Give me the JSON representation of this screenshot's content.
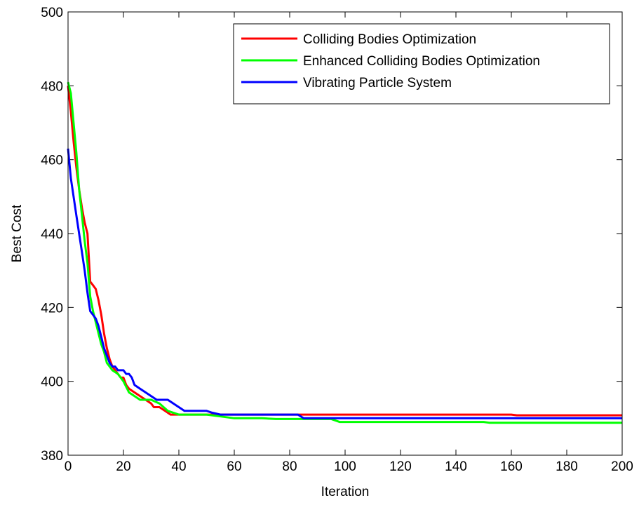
{
  "chart_data": {
    "type": "line",
    "xlabel": "Iteration",
    "ylabel": "Best Cost",
    "xlim": [
      0,
      200
    ],
    "ylim": [
      380,
      500
    ],
    "xticks": [
      0,
      20,
      40,
      60,
      80,
      100,
      120,
      140,
      160,
      180,
      200
    ],
    "yticks": [
      380,
      400,
      420,
      440,
      460,
      480,
      500
    ],
    "grid": false,
    "legend_position": "top-right",
    "series": [
      {
        "name": "Colliding Bodies Optimization",
        "color": "#ff0000",
        "points": [
          [
            0,
            480
          ],
          [
            1,
            473
          ],
          [
            2,
            465
          ],
          [
            3,
            458
          ],
          [
            4,
            452
          ],
          [
            5,
            447
          ],
          [
            6,
            443
          ],
          [
            7,
            440
          ],
          [
            8,
            427
          ],
          [
            9,
            426
          ],
          [
            10,
            425
          ],
          [
            11,
            422
          ],
          [
            12,
            418
          ],
          [
            13,
            413
          ],
          [
            14,
            409
          ],
          [
            15,
            406
          ],
          [
            16,
            404
          ],
          [
            17,
            403
          ],
          [
            18,
            402
          ],
          [
            19,
            401
          ],
          [
            20,
            401
          ],
          [
            21,
            399
          ],
          [
            22,
            398
          ],
          [
            24,
            397
          ],
          [
            26,
            396
          ],
          [
            28,
            395
          ],
          [
            30,
            394
          ],
          [
            31,
            393
          ],
          [
            33,
            393
          ],
          [
            35,
            392
          ],
          [
            37,
            391
          ],
          [
            40,
            391
          ],
          [
            50,
            391
          ],
          [
            60,
            391
          ],
          [
            80,
            391
          ],
          [
            100,
            391
          ],
          [
            120,
            391
          ],
          [
            140,
            391
          ],
          [
            160,
            391
          ],
          [
            162,
            390.8
          ],
          [
            180,
            390.8
          ],
          [
            200,
            390.8
          ]
        ]
      },
      {
        "name": "Enhanced Colliding Bodies Optimization",
        "color": "#00ff00",
        "points": [
          [
            0,
            481
          ],
          [
            1,
            478
          ],
          [
            2,
            470
          ],
          [
            3,
            462
          ],
          [
            4,
            452
          ],
          [
            5,
            445
          ],
          [
            6,
            438
          ],
          [
            7,
            432
          ],
          [
            8,
            423
          ],
          [
            9,
            419
          ],
          [
            10,
            416
          ],
          [
            11,
            413
          ],
          [
            12,
            410
          ],
          [
            13,
            408
          ],
          [
            14,
            405
          ],
          [
            15,
            404
          ],
          [
            16,
            403
          ],
          [
            18,
            402
          ],
          [
            19,
            401
          ],
          [
            20,
            400
          ],
          [
            22,
            397
          ],
          [
            24,
            396
          ],
          [
            26,
            395
          ],
          [
            30,
            395
          ],
          [
            33,
            394
          ],
          [
            36,
            392
          ],
          [
            40,
            391
          ],
          [
            50,
            391
          ],
          [
            55,
            390.5
          ],
          [
            60,
            390
          ],
          [
            70,
            390
          ],
          [
            75,
            389.8
          ],
          [
            95,
            389.8
          ],
          [
            98,
            389
          ],
          [
            120,
            389
          ],
          [
            150,
            389
          ],
          [
            152,
            388.8
          ],
          [
            170,
            388.8
          ],
          [
            200,
            388.8
          ]
        ]
      },
      {
        "name": "Vibrating Particle System",
        "color": "#0000ff",
        "points": [
          [
            0,
            463
          ],
          [
            1,
            455
          ],
          [
            2,
            450
          ],
          [
            3,
            445
          ],
          [
            4,
            440
          ],
          [
            5,
            435
          ],
          [
            6,
            430
          ],
          [
            7,
            424
          ],
          [
            8,
            419
          ],
          [
            9,
            418
          ],
          [
            10,
            417
          ],
          [
            11,
            415
          ],
          [
            12,
            412
          ],
          [
            13,
            409
          ],
          [
            14,
            407
          ],
          [
            15,
            405
          ],
          [
            16,
            404
          ],
          [
            17,
            404
          ],
          [
            18,
            403
          ],
          [
            20,
            403
          ],
          [
            21,
            402
          ],
          [
            22,
            402
          ],
          [
            23,
            401
          ],
          [
            24,
            399
          ],
          [
            26,
            398
          ],
          [
            28,
            397
          ],
          [
            30,
            396
          ],
          [
            32,
            395
          ],
          [
            36,
            395
          ],
          [
            38,
            394
          ],
          [
            40,
            393
          ],
          [
            42,
            392
          ],
          [
            50,
            392
          ],
          [
            52,
            391.5
          ],
          [
            55,
            391
          ],
          [
            60,
            391
          ],
          [
            70,
            391
          ],
          [
            83,
            391
          ],
          [
            85,
            390
          ],
          [
            100,
            390
          ],
          [
            150,
            390
          ],
          [
            200,
            390
          ]
        ]
      }
    ]
  }
}
